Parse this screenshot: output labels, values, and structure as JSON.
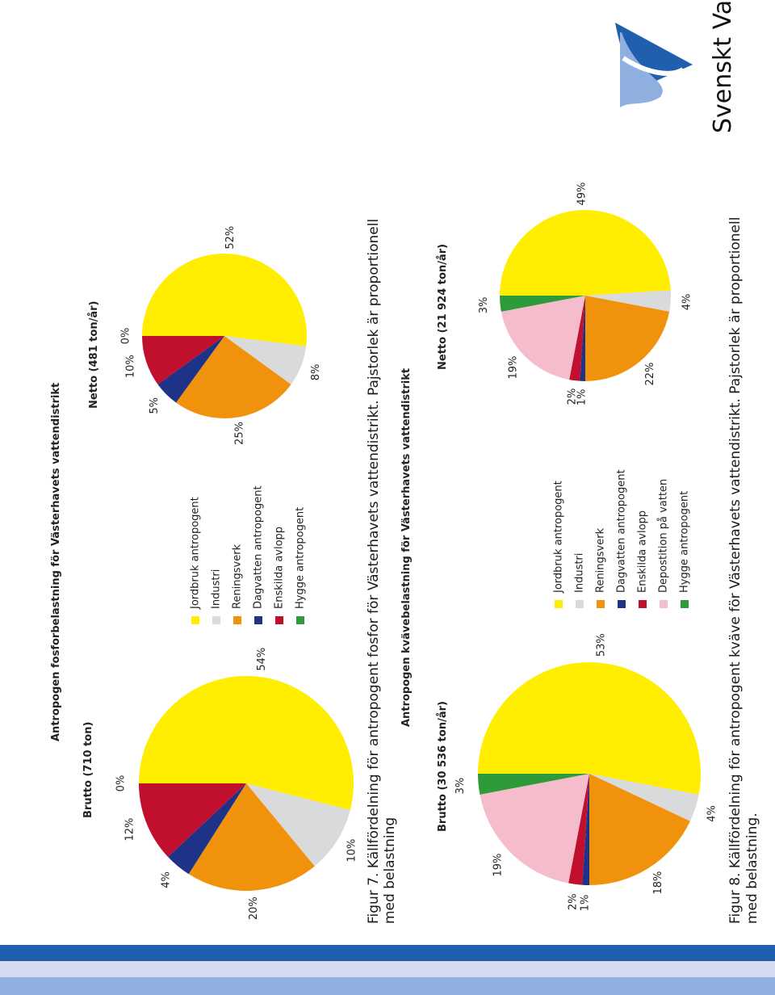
{
  "brand": {
    "name": "Svenskt Vatten",
    "colors": {
      "dark": "#1f5fae",
      "light": "#8fb0de"
    }
  },
  "colors": {
    "Jordbruk antropogent": "#ffee00",
    "Industri": "#d9dadb",
    "Reningsverk": "#f1920d",
    "Dagvatten antropogent": "#1e3287",
    "Enskilda avlopp": "#c0102e",
    "Depostition på vatten": "#f5bccb",
    "Hygge antropogent": "#2f9a3a"
  },
  "figure7": {
    "title": "Antropogen fosforbelastning för Västerhavets vattendistrikt",
    "caption_line1": "Figur 7. Källfördelning för antropogent fosfor för Västerhavets vattendistrikt. Pajstorlek är proportionell",
    "caption_line2": "med belastning",
    "legend": [
      "Jordbruk antropogent",
      "Industri",
      "Reningsverk",
      "Dagvatten antropogent",
      "Enskilda avlopp",
      "Hygge antropogent"
    ]
  },
  "figure8": {
    "title": "Antropogen kvävebelastning för Västerhavets vattendistrikt",
    "caption_line1": "Figur 8. Källfördelning för antropogent kväve för Västerhavets vattendistrikt. Pajstorlek är proportionell",
    "caption_line2": "med belastning.",
    "legend": [
      "Jordbruk antropogent",
      "Industri",
      "Reningsverk",
      "Dagvatten antropogent",
      "Enskilda avlopp",
      "Depostition på vatten",
      "Hygge antropogent"
    ]
  },
  "chart_data": [
    {
      "type": "pie",
      "title": "Brutto (710 ton)",
      "labels": [
        "Jordbruk antropogent",
        "Industri",
        "Reningsverk",
        "Dagvatten antropogent",
        "Enskilda avlopp",
        "Hygge antropogent"
      ],
      "values": [
        54,
        10,
        20,
        4,
        12,
        0
      ],
      "value_labels": [
        "54%",
        "10%",
        "20%",
        "4%",
        "12%",
        "0%"
      ]
    },
    {
      "type": "pie",
      "title": "Netto (481 ton/år)",
      "labels": [
        "Jordbruk antropogent",
        "Industri",
        "Reningsverk",
        "Dagvatten antropogent",
        "Enskilda avlopp",
        "Hygge antropogent"
      ],
      "values": [
        52,
        8,
        25,
        5,
        10,
        0
      ],
      "value_labels": [
        "52%",
        "8%",
        "25%",
        "5%",
        "10%",
        "0%"
      ]
    },
    {
      "type": "pie",
      "title": "Brutto (30 536 ton/år)",
      "labels": [
        "Jordbruk antropogent",
        "Industri",
        "Reningsverk",
        "Dagvatten antropogent",
        "Enskilda avlopp",
        "Depostition på vatten",
        "Hygge antropogent"
      ],
      "values": [
        53,
        4,
        18,
        1,
        2,
        19,
        3
      ],
      "value_labels": [
        "53%",
        "4%",
        "18%",
        "1%",
        "2%",
        "19%",
        "3%"
      ]
    },
    {
      "type": "pie",
      "title": "Netto (21 924 ton/år)",
      "labels": [
        "Jordbruk antropogent",
        "Industri",
        "Reningsverk",
        "Dagvatten antropogent",
        "Enskilda avlopp",
        "Depostition på vatten",
        "Hygge antropogent"
      ],
      "values": [
        49,
        4,
        22,
        1,
        2,
        19,
        3
      ],
      "value_labels": [
        "49%",
        "4%",
        "22%",
        "1%",
        "2%",
        "19%",
        "3%"
      ]
    }
  ]
}
